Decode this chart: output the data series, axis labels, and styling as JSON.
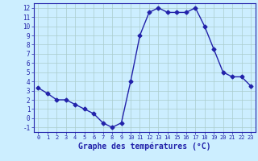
{
  "hours": [
    0,
    1,
    2,
    3,
    4,
    5,
    6,
    7,
    8,
    9,
    10,
    11,
    12,
    13,
    14,
    15,
    16,
    17,
    18,
    19,
    20,
    21,
    22,
    23
  ],
  "temps": [
    3.3,
    2.7,
    2.0,
    2.0,
    1.5,
    1.0,
    0.5,
    -0.5,
    -1.0,
    -0.5,
    4.0,
    9.0,
    11.5,
    12.0,
    11.5,
    11.5,
    11.5,
    12.0,
    10.0,
    7.5,
    5.0,
    4.5,
    4.5,
    3.5
  ],
  "line_color": "#2222aa",
  "marker": "D",
  "marker_size": 2.5,
  "bg_color": "#cceeff",
  "grid_color": "#aacccc",
  "xlabel": "Graphe des températures (°C)",
  "xlabel_color": "#2222aa",
  "ylim": [
    -1.5,
    12.5
  ],
  "yticks": [
    -1,
    0,
    1,
    2,
    3,
    4,
    5,
    6,
    7,
    8,
    9,
    10,
    11,
    12
  ],
  "xtick_labels": [
    "0",
    "1",
    "2",
    "3",
    "4",
    "5",
    "6",
    "7",
    "8",
    "9",
    "10",
    "11",
    "12",
    "13",
    "14",
    "15",
    "16",
    "17",
    "18",
    "19",
    "20",
    "21",
    "22",
    "23"
  ],
  "tick_color": "#2222aa",
  "spine_color": "#2222aa"
}
